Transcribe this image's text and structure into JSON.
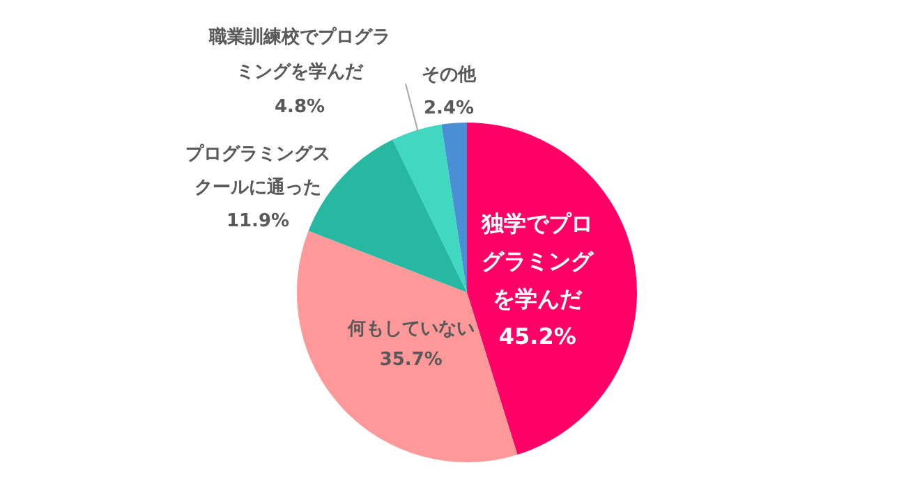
{
  "chart_data": {
    "type": "pie",
    "categories": [
      "独学でプログラミングを学んだ",
      "何もしていない",
      "プログラミングスクールに通った",
      "職業訓練校でプログラミングを学んだ",
      "その他"
    ],
    "values": [
      45.2,
      35.7,
      11.9,
      4.8,
      2.4
    ],
    "colors": [
      "#ff0066",
      "#ff9999",
      "#26b8a0",
      "#40d8c0",
      "#4a8fd6"
    ],
    "value_labels": [
      "45.2%",
      "35.7%",
      "11.9%",
      "4.8%",
      "2.4%"
    ],
    "legend": false
  }
}
